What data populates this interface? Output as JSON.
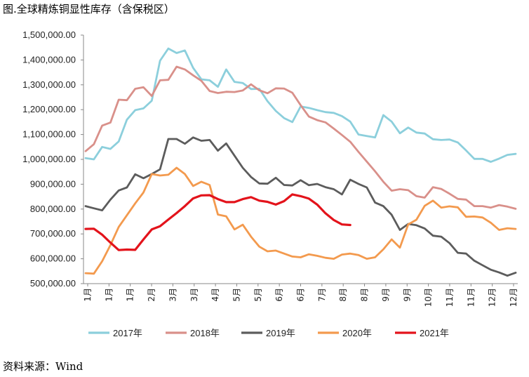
{
  "title": "图.全球精炼铜显性库存（含保税区）",
  "source": "资料来源：Wind",
  "chart_data": {
    "type": "line",
    "ylim": [
      500000,
      1500000
    ],
    "yticks": [
      500000,
      600000,
      700000,
      800000,
      900000,
      1000000,
      1100000,
      1200000,
      1300000,
      1400000,
      1500000
    ],
    "ytick_labels": [
      "500,000.00",
      "600,000.00",
      "700,000.00",
      "800,000.00",
      "900,000.00",
      "1,000,000.00",
      "1,100,000.00",
      "1,200,000.00",
      "1,300,000.00",
      "1,400,000.00",
      "1,500,000.00"
    ],
    "xtick_labels": [
      "1月",
      "1月",
      "1月",
      "2月",
      "3月",
      "3月",
      "4月",
      "5月",
      "5月",
      "6月",
      "6月",
      "7月",
      "8月",
      "8月",
      "9月",
      "9月",
      "10月",
      "11月",
      "11月",
      "12月",
      "12月"
    ],
    "grid": false,
    "legend_position": "bottom",
    "series": [
      {
        "name": "2017年",
        "color": "#8ccfdc",
        "values": [
          1005000,
          1000000,
          1050000,
          1042000,
          1072000,
          1160000,
          1198000,
          1205000,
          1236000,
          1397000,
          1446000,
          1428000,
          1438000,
          1368000,
          1322000,
          1318000,
          1292000,
          1362000,
          1312000,
          1307000,
          1283000,
          1284000,
          1234000,
          1195000,
          1166000,
          1150000,
          1213000,
          1207000,
          1198000,
          1190000,
          1187000,
          1174000,
          1152000,
          1100000,
          1094000,
          1088000,
          1178000,
          1152000,
          1105000,
          1128000,
          1108000,
          1104000,
          1081000,
          1078000,
          1080000,
          1068000,
          1036000,
          1002000,
          1002000,
          990000,
          1003000,
          1018000,
          1022000
        ]
      },
      {
        "name": "2018年",
        "color": "#d9908a",
        "values": [
          1033000,
          1061000,
          1136000,
          1148000,
          1240000,
          1238000,
          1284000,
          1290000,
          1255000,
          1318000,
          1320000,
          1373000,
          1362000,
          1338000,
          1316000,
          1275000,
          1267000,
          1272000,
          1271000,
          1277000,
          1302000,
          1278000,
          1266000,
          1286000,
          1285000,
          1268000,
          1218000,
          1172000,
          1158000,
          1149000,
          1124000,
          1098000,
          1071000,
          1030000,
          991000,
          952000,
          910000,
          874000,
          880000,
          876000,
          852000,
          846000,
          888000,
          881000,
          862000,
          841000,
          838000,
          812000,
          812000,
          806000,
          816000,
          810000,
          801000
        ]
      },
      {
        "name": "2019年",
        "color": "#5c5c5c",
        "values": [
          812000,
          803000,
          795000,
          838000,
          875000,
          887000,
          940000,
          924000,
          941000,
          960000,
          1082000,
          1082000,
          1063000,
          1088000,
          1075000,
          1078000,
          1035000,
          1064000,
          1015000,
          966000,
          929000,
          903000,
          902000,
          926000,
          897000,
          895000,
          916000,
          896000,
          901000,
          888000,
          880000,
          859000,
          918000,
          901000,
          887000,
          826000,
          812000,
          777000,
          716000,
          740000,
          735000,
          722000,
          693000,
          689000,
          663000,
          624000,
          621000,
          592000,
          574000,
          556000,
          545000,
          532000,
          544000
        ]
      },
      {
        "name": "2020年",
        "color": "#f39a4e",
        "values": [
          542000,
          540000,
          590000,
          655000,
          728000,
          775000,
          823000,
          867000,
          941000,
          935000,
          938000,
          966000,
          941000,
          893000,
          910000,
          897000,
          778000,
          771000,
          718000,
          737000,
          689000,
          649000,
          630000,
          633000,
          621000,
          609000,
          606000,
          618000,
          612000,
          604000,
          600000,
          617000,
          621000,
          615000,
          600000,
          606000,
          638000,
          678000,
          645000,
          738000,
          757000,
          813000,
          834000,
          806000,
          811000,
          807000,
          769000,
          770000,
          766000,
          745000,
          716000,
          723000,
          720000
        ]
      },
      {
        "name": "2021年",
        "color": "#e3131b",
        "values": [
          720000,
          721000,
          697000,
          665000,
          635000,
          637000,
          636000,
          678000,
          718000,
          731000,
          758000,
          784000,
          812000,
          843000,
          855000,
          856000,
          840000,
          828000,
          828000,
          840000,
          848000,
          834000,
          829000,
          818000,
          832000,
          859000,
          852000,
          842000,
          818000,
          783000,
          756000,
          738000,
          736000
        ]
      }
    ]
  }
}
